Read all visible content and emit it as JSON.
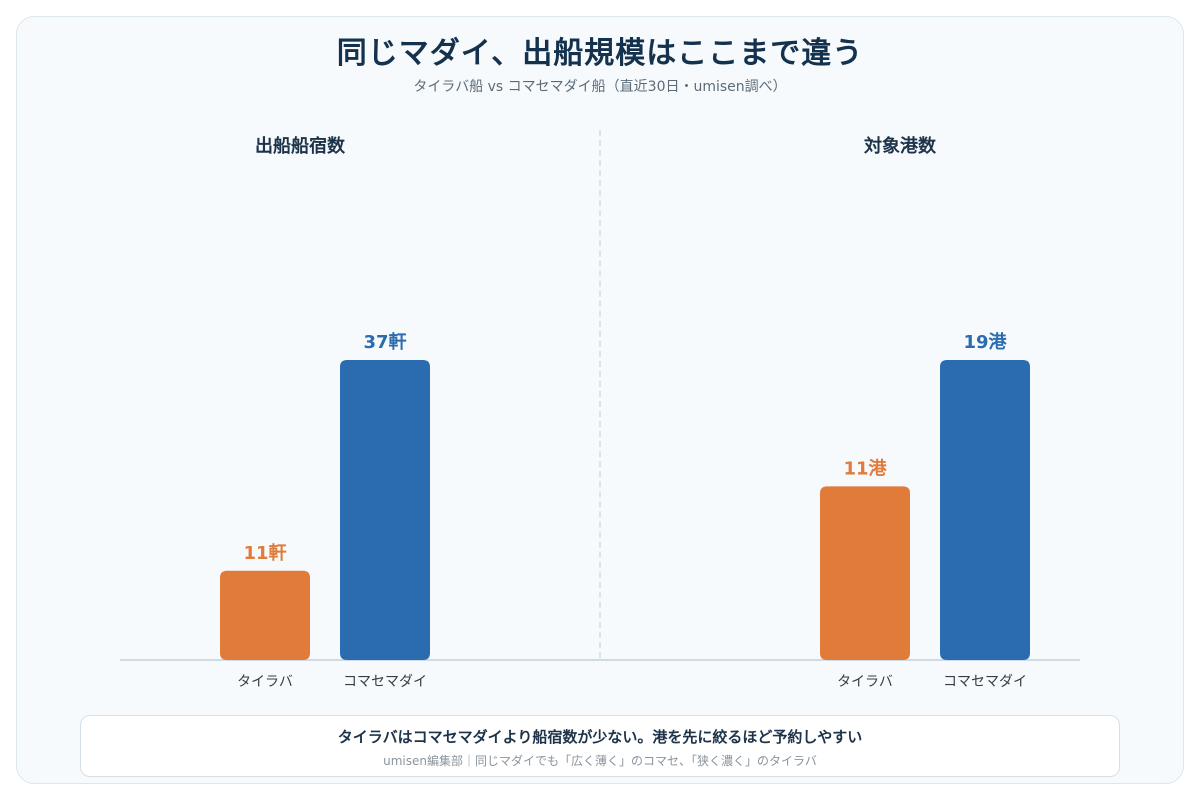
{
  "title": "同じマダイ、出船規模はここまで違う",
  "subtitle": "タイラバ船 vs コマセマダイ船（直近30日・umisen調べ）",
  "colors": {
    "tairaba": "#e07b3a",
    "komase": "#2b6cb0"
  },
  "chart_data": [
    {
      "type": "bar",
      "title": "出船船宿数",
      "categories": [
        "タイラバ",
        "コマセマダイ"
      ],
      "values": [
        11,
        37
      ],
      "data_labels": [
        "11軒",
        "37軒"
      ],
      "ylim": [
        0,
        37
      ],
      "grid": false
    },
    {
      "type": "bar",
      "title": "対象港数",
      "categories": [
        "タイラバ",
        "コマセマダイ"
      ],
      "values": [
        11,
        19
      ],
      "data_labels": [
        "11港",
        "19港"
      ],
      "ylim": [
        0,
        19
      ],
      "grid": false
    }
  ],
  "footer": {
    "main": "タイラバはコマセマダイより船宿数が少ない。港を先に絞るほど予約しやすい",
    "note": "umisen編集部｜同じマダイでも「広く薄く」のコマセ、「狭く濃く」のタイラバ"
  }
}
